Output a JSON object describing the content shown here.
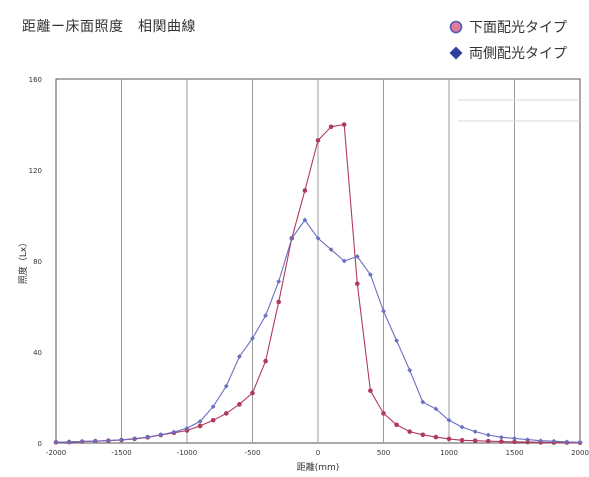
{
  "header": {
    "title": "距離ー床面照度　相関曲線"
  },
  "chart_data": {
    "type": "line",
    "title": "距離ー床面照度　相関曲線",
    "xlabel": "距離(mm)",
    "ylabel": "照度（Lx）",
    "xlim": [
      -2000,
      2000
    ],
    "ylim": [
      0,
      160
    ],
    "xticks": [
      -2000,
      -1500,
      -1000,
      -500,
      0,
      500,
      1000,
      1500,
      2000
    ],
    "yticks": [
      0,
      40,
      80,
      120,
      160
    ],
    "grid": "vertical",
    "legend_position": "top-right",
    "series": [
      {
        "name": "下面配光タイプ",
        "color": "#b03a5b",
        "marker": "circle",
        "x": [
          -2000,
          -1900,
          -1800,
          -1700,
          -1600,
          -1500,
          -1400,
          -1300,
          -1200,
          -1100,
          -1000,
          -900,
          -800,
          -700,
          -600,
          -500,
          -400,
          -300,
          -200,
          -100,
          0,
          100,
          200,
          300,
          400,
          500,
          600,
          700,
          800,
          900,
          1000,
          1100,
          1200,
          1300,
          1400,
          1500,
          1600,
          1700,
          1800,
          1900,
          2000
        ],
        "y": [
          0.3,
          0.4,
          0.6,
          0.8,
          1.0,
          1.3,
          1.8,
          2.5,
          3.5,
          4.5,
          5.5,
          7.5,
          10,
          13,
          17,
          22,
          36,
          62,
          90,
          111,
          133,
          139,
          140,
          70,
          23,
          13,
          8,
          5,
          3.6,
          2.6,
          1.8,
          1.2,
          1.0,
          0.8,
          0.6,
          0.5,
          0.4,
          0.3,
          0.2,
          0.2,
          0.1
        ]
      },
      {
        "name": "両側配光タイプ",
        "color": "#6b6fbf",
        "marker": "diamond",
        "x": [
          -2000,
          -1900,
          -1800,
          -1700,
          -1600,
          -1500,
          -1400,
          -1300,
          -1200,
          -1100,
          -1000,
          -900,
          -800,
          -700,
          -600,
          -500,
          -400,
          -300,
          -200,
          -100,
          0,
          100,
          200,
          300,
          400,
          500,
          600,
          700,
          800,
          900,
          1000,
          1100,
          1200,
          1300,
          1400,
          1500,
          1600,
          1700,
          1800,
          1900,
          2000
        ],
        "y": [
          0.3,
          0.5,
          0.7,
          0.9,
          1.1,
          1.4,
          1.9,
          2.6,
          3.6,
          4.8,
          6.5,
          9.5,
          16,
          25,
          38,
          46,
          56,
          71,
          90,
          98,
          90,
          85,
          80,
          82,
          74,
          58,
          45,
          32,
          18,
          15,
          10,
          7,
          5,
          3.5,
          2.5,
          2,
          1.5,
          1,
          0.8,
          0.5,
          0.3
        ]
      }
    ]
  },
  "legend": {
    "items": [
      {
        "label": "下面配光タイプ",
        "icon": "circle-marker-icon",
        "color": "#b03a5b"
      },
      {
        "label": "両側配光タイプ",
        "icon": "diamond-marker-icon",
        "color": "#2f3f9e"
      }
    ]
  }
}
